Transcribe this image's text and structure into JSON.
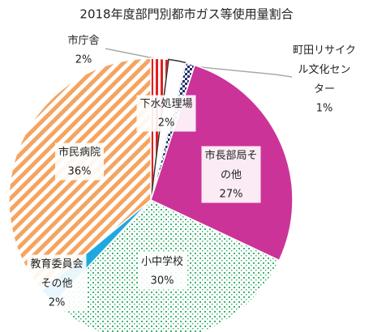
{
  "chart_data": {
    "type": "pie",
    "title": "2018年度部門別都市ガス等使用量割合",
    "categories": [
      "市庁舎",
      "下水処理場",
      "町田リサイクル文化センター",
      "市長部局その他",
      "小中学校",
      "教育委員会その他",
      "市民病院"
    ],
    "values": [
      2,
      2,
      1,
      27,
      30,
      2,
      36
    ],
    "value_labels": [
      "2%",
      "2%",
      "1%",
      "27%",
      "30%",
      "2%",
      "36%"
    ],
    "colors": [
      "#e02020",
      "#ffffff",
      "#1f2d6b",
      "#cc3399",
      "#3cb371",
      "#1fa8e0",
      "#f4a460"
    ]
  }
}
